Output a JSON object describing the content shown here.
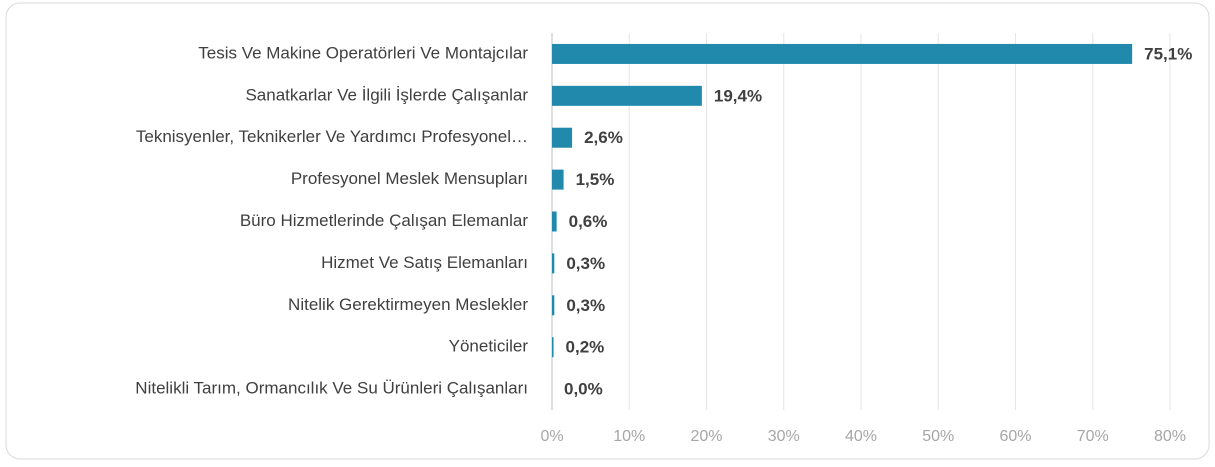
{
  "chart_data": {
    "type": "hbar",
    "categories": [
      "Tesis Ve Makine Operatörleri Ve Montajcılar",
      "Sanatkarlar Ve İlgili İşlerde Çalışanlar",
      "Teknisyenler, Teknikerler Ve Yardımcı Profesyonel…",
      "Profesyonel Meslek Mensupları",
      "Büro Hizmetlerinde Çalışan Elemanlar",
      "Hizmet Ve Satış Elemanları",
      "Nitelik Gerektirmeyen Meslekler",
      "Yöneticiler",
      "Nitelikli Tarım, Ormancılık Ve Su Ürünleri Çalışanları"
    ],
    "values": [
      75.1,
      19.4,
      2.6,
      1.5,
      0.6,
      0.3,
      0.3,
      0.2,
      0.0
    ],
    "value_labels": [
      "75,1%",
      "19,4%",
      "2,6%",
      "1,5%",
      "0,6%",
      "0,3%",
      "0,3%",
      "0,2%",
      "0,0%"
    ],
    "color": "#2189ac",
    "xlim": [
      0,
      80
    ],
    "xticks": [
      {
        "value": 0,
        "label": "0%"
      },
      {
        "value": 10,
        "label": "10%"
      },
      {
        "value": 20,
        "label": "20%"
      },
      {
        "value": 30,
        "label": "30%"
      },
      {
        "value": 40,
        "label": "40%"
      },
      {
        "value": 50,
        "label": "50%"
      },
      {
        "value": 60,
        "label": "60%"
      },
      {
        "value": 70,
        "label": "70%"
      },
      {
        "value": 80,
        "label": "80%"
      }
    ],
    "grid": true
  }
}
